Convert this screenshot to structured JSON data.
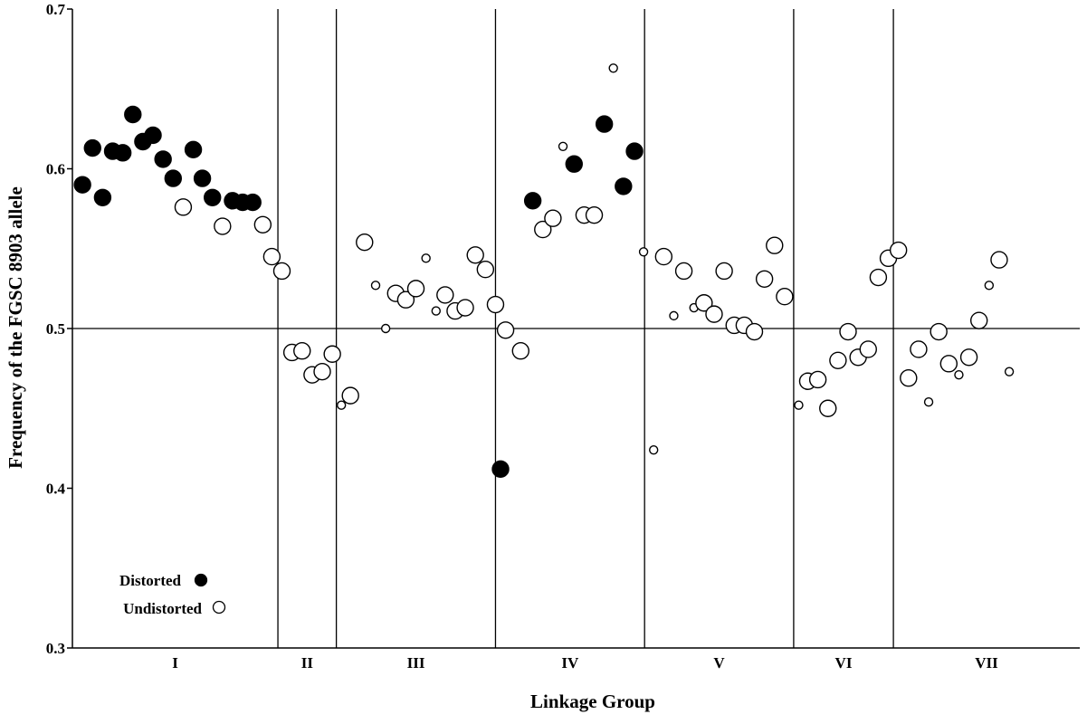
{
  "chart_data": {
    "type": "scatter",
    "title": "",
    "xlabel": "Linkage Group",
    "ylabel": "Frequency of the FGSC 8903 allele",
    "ylim": [
      0.3,
      0.7
    ],
    "yticks": [
      "0.3",
      "0.4",
      "0.5",
      "0.6",
      "0.7"
    ],
    "reference_line": 0.5,
    "grid": false,
    "legend_placement": "bottom-left",
    "legend": [
      {
        "label": "Distorted",
        "marker": "filled-circle"
      },
      {
        "label": "Undistorted",
        "marker": "open-circle"
      }
    ],
    "linkage_groups": [
      {
        "name": "I",
        "start": 0,
        "end": 0.204
      },
      {
        "name": "II",
        "start": 0.204,
        "end": 0.262
      },
      {
        "name": "III",
        "start": 0.262,
        "end": 0.42
      },
      {
        "name": "IV",
        "start": 0.42,
        "end": 0.568
      },
      {
        "name": "V",
        "start": 0.568,
        "end": 0.716
      },
      {
        "name": "VI",
        "start": 0.716,
        "end": 0.815
      },
      {
        "name": "VII",
        "start": 0.815,
        "end": 1
      }
    ],
    "series": [
      {
        "name": "Distorted",
        "points": [
          {
            "x": 0.01,
            "y": 0.59,
            "s": "l"
          },
          {
            "x": 0.02,
            "y": 0.613,
            "s": "l"
          },
          {
            "x": 0.03,
            "y": 0.582,
            "s": "l"
          },
          {
            "x": 0.04,
            "y": 0.611,
            "s": "l"
          },
          {
            "x": 0.05,
            "y": 0.61,
            "s": "l"
          },
          {
            "x": 0.06,
            "y": 0.634,
            "s": "l"
          },
          {
            "x": 0.07,
            "y": 0.617,
            "s": "l"
          },
          {
            "x": 0.08,
            "y": 0.621,
            "s": "l"
          },
          {
            "x": 0.09,
            "y": 0.606,
            "s": "l"
          },
          {
            "x": 0.1,
            "y": 0.594,
            "s": "l"
          },
          {
            "x": 0.12,
            "y": 0.612,
            "s": "l"
          },
          {
            "x": 0.129,
            "y": 0.594,
            "s": "l"
          },
          {
            "x": 0.139,
            "y": 0.582,
            "s": "l"
          },
          {
            "x": 0.159,
            "y": 0.58,
            "s": "l"
          },
          {
            "x": 0.169,
            "y": 0.579,
            "s": "l"
          },
          {
            "x": 0.179,
            "y": 0.579,
            "s": "l"
          },
          {
            "x": 0.425,
            "y": 0.412,
            "s": "l"
          },
          {
            "x": 0.457,
            "y": 0.58,
            "s": "l"
          },
          {
            "x": 0.498,
            "y": 0.603,
            "s": "l"
          },
          {
            "x": 0.528,
            "y": 0.628,
            "s": "l"
          },
          {
            "x": 0.547,
            "y": 0.589,
            "s": "l"
          },
          {
            "x": 0.558,
            "y": 0.611,
            "s": "l"
          }
        ]
      },
      {
        "name": "Undistorted",
        "points": [
          {
            "x": 0.11,
            "y": 0.576,
            "s": "l"
          },
          {
            "x": 0.149,
            "y": 0.564,
            "s": "l"
          },
          {
            "x": 0.189,
            "y": 0.565,
            "s": "l"
          },
          {
            "x": 0.198,
            "y": 0.545,
            "s": "l"
          },
          {
            "x": 0.208,
            "y": 0.536,
            "s": "l"
          },
          {
            "x": 0.218,
            "y": 0.485,
            "s": "l"
          },
          {
            "x": 0.228,
            "y": 0.486,
            "s": "l"
          },
          {
            "x": 0.238,
            "y": 0.471,
            "s": "l"
          },
          {
            "x": 0.248,
            "y": 0.473,
            "s": "l"
          },
          {
            "x": 0.258,
            "y": 0.484,
            "s": "l"
          },
          {
            "x": 0.267,
            "y": 0.452,
            "s": "s"
          },
          {
            "x": 0.276,
            "y": 0.458,
            "s": "l"
          },
          {
            "x": 0.29,
            "y": 0.554,
            "s": "l"
          },
          {
            "x": 0.301,
            "y": 0.527,
            "s": "s"
          },
          {
            "x": 0.311,
            "y": 0.5,
            "s": "s"
          },
          {
            "x": 0.321,
            "y": 0.522,
            "s": "l"
          },
          {
            "x": 0.331,
            "y": 0.518,
            "s": "l"
          },
          {
            "x": 0.341,
            "y": 0.525,
            "s": "l"
          },
          {
            "x": 0.351,
            "y": 0.544,
            "s": "s"
          },
          {
            "x": 0.361,
            "y": 0.511,
            "s": "s"
          },
          {
            "x": 0.37,
            "y": 0.521,
            "s": "l"
          },
          {
            "x": 0.38,
            "y": 0.511,
            "s": "l"
          },
          {
            "x": 0.39,
            "y": 0.513,
            "s": "l"
          },
          {
            "x": 0.4,
            "y": 0.546,
            "s": "l"
          },
          {
            "x": 0.41,
            "y": 0.537,
            "s": "l"
          },
          {
            "x": 0.42,
            "y": 0.515,
            "s": "l"
          },
          {
            "x": 0.43,
            "y": 0.499,
            "s": "l"
          },
          {
            "x": 0.445,
            "y": 0.486,
            "s": "l"
          },
          {
            "x": 0.467,
            "y": 0.562,
            "s": "l"
          },
          {
            "x": 0.477,
            "y": 0.569,
            "s": "l"
          },
          {
            "x": 0.487,
            "y": 0.614,
            "s": "s"
          },
          {
            "x": 0.508,
            "y": 0.571,
            "s": "l"
          },
          {
            "x": 0.518,
            "y": 0.571,
            "s": "l"
          },
          {
            "x": 0.537,
            "y": 0.663,
            "s": "s"
          },
          {
            "x": 0.567,
            "y": 0.548,
            "s": "s"
          },
          {
            "x": 0.577,
            "y": 0.424,
            "s": "s"
          },
          {
            "x": 0.587,
            "y": 0.545,
            "s": "l"
          },
          {
            "x": 0.597,
            "y": 0.508,
            "s": "s"
          },
          {
            "x": 0.607,
            "y": 0.536,
            "s": "l"
          },
          {
            "x": 0.617,
            "y": 0.513,
            "s": "s"
          },
          {
            "x": 0.627,
            "y": 0.516,
            "s": "l"
          },
          {
            "x": 0.637,
            "y": 0.509,
            "s": "l"
          },
          {
            "x": 0.647,
            "y": 0.536,
            "s": "l"
          },
          {
            "x": 0.657,
            "y": 0.502,
            "s": "l"
          },
          {
            "x": 0.667,
            "y": 0.502,
            "s": "l"
          },
          {
            "x": 0.677,
            "y": 0.498,
            "s": "l"
          },
          {
            "x": 0.687,
            "y": 0.531,
            "s": "l"
          },
          {
            "x": 0.697,
            "y": 0.552,
            "s": "l"
          },
          {
            "x": 0.707,
            "y": 0.52,
            "s": "l"
          },
          {
            "x": 0.721,
            "y": 0.452,
            "s": "s"
          },
          {
            "x": 0.73,
            "y": 0.467,
            "s": "l"
          },
          {
            "x": 0.74,
            "y": 0.468,
            "s": "l"
          },
          {
            "x": 0.75,
            "y": 0.45,
            "s": "l"
          },
          {
            "x": 0.76,
            "y": 0.48,
            "s": "l"
          },
          {
            "x": 0.77,
            "y": 0.498,
            "s": "l"
          },
          {
            "x": 0.78,
            "y": 0.482,
            "s": "l"
          },
          {
            "x": 0.79,
            "y": 0.487,
            "s": "l"
          },
          {
            "x": 0.8,
            "y": 0.532,
            "s": "l"
          },
          {
            "x": 0.81,
            "y": 0.544,
            "s": "l"
          },
          {
            "x": 0.82,
            "y": 0.549,
            "s": "l"
          },
          {
            "x": 0.83,
            "y": 0.469,
            "s": "l"
          },
          {
            "x": 0.84,
            "y": 0.487,
            "s": "l"
          },
          {
            "x": 0.85,
            "y": 0.454,
            "s": "s"
          },
          {
            "x": 0.86,
            "y": 0.498,
            "s": "l"
          },
          {
            "x": 0.87,
            "y": 0.478,
            "s": "l"
          },
          {
            "x": 0.88,
            "y": 0.471,
            "s": "s"
          },
          {
            "x": 0.89,
            "y": 0.482,
            "s": "l"
          },
          {
            "x": 0.9,
            "y": 0.505,
            "s": "l"
          },
          {
            "x": 0.91,
            "y": 0.527,
            "s": "s"
          },
          {
            "x": 0.92,
            "y": 0.543,
            "s": "l"
          },
          {
            "x": 0.93,
            "y": 0.473,
            "s": "s"
          }
        ]
      }
    ]
  }
}
